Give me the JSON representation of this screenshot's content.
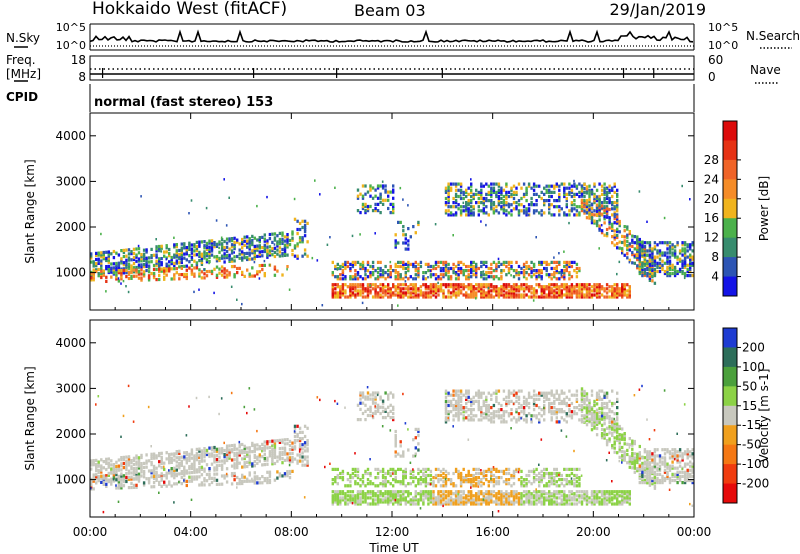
{
  "header": {
    "station": "Hokkaido West (fitACF)",
    "beam": "Beam 03",
    "date": "29/Jan/2019"
  },
  "noise_panel": {
    "left_label": "N.Sky",
    "right_label": "N.Search",
    "left_ticks": [
      "10^5",
      "10^0"
    ],
    "right_ticks": [
      "10^5",
      "10^0"
    ]
  },
  "freq_panel": {
    "left_label_1": "Freq.",
    "left_label_2": "[MHz]",
    "left_ticks": [
      "18",
      "8"
    ],
    "right_label": "Nave",
    "right_ticks": [
      "60",
      "0"
    ]
  },
  "cpid": {
    "label": "CPID",
    "mode": "normal (fast stereo) 153"
  },
  "chart_data": [
    {
      "type": "heatmap",
      "name": "Power",
      "ylabel": "Slant Range [km]",
      "ylim": [
        180,
        4500
      ],
      "yticks": [
        "1000",
        "2000",
        "3000",
        "4000"
      ],
      "xlim": [
        0,
        24
      ],
      "colorbar": {
        "label": "Power [dB]",
        "ticks": [
          "4",
          "8",
          "12",
          "16",
          "20",
          "24",
          "28"
        ],
        "colors": [
          "#1414e6",
          "#2d55b4",
          "#378c6e",
          "#4bb14b",
          "#f0b41e",
          "#f58c28",
          "#f06428",
          "#e63214",
          "#dc0a0a"
        ]
      }
    },
    {
      "type": "heatmap",
      "name": "Velocity",
      "ylabel": "Slant Range [km]",
      "ylim": [
        180,
        4500
      ],
      "yticks": [
        "1000",
        "2000",
        "3000",
        "4000"
      ],
      "xlim": [
        0,
        24
      ],
      "xticks": [
        "00:00",
        "04:00",
        "08:00",
        "12:00",
        "16:00",
        "20:00",
        "00:00"
      ],
      "xlabel": "Time UT",
      "colorbar": {
        "label": "Velocity [m s-1]",
        "ticks": [
          "200",
          "100",
          "50",
          "15",
          "-15",
          "-50",
          "-100",
          "-200"
        ],
        "colors": [
          "#1e3cd2",
          "#2d6e5a",
          "#4ba03c",
          "#8cd246",
          "#c8c8be",
          "#f0a01e",
          "#f57814",
          "#f03c0f",
          "#e60a0a"
        ]
      }
    }
  ]
}
